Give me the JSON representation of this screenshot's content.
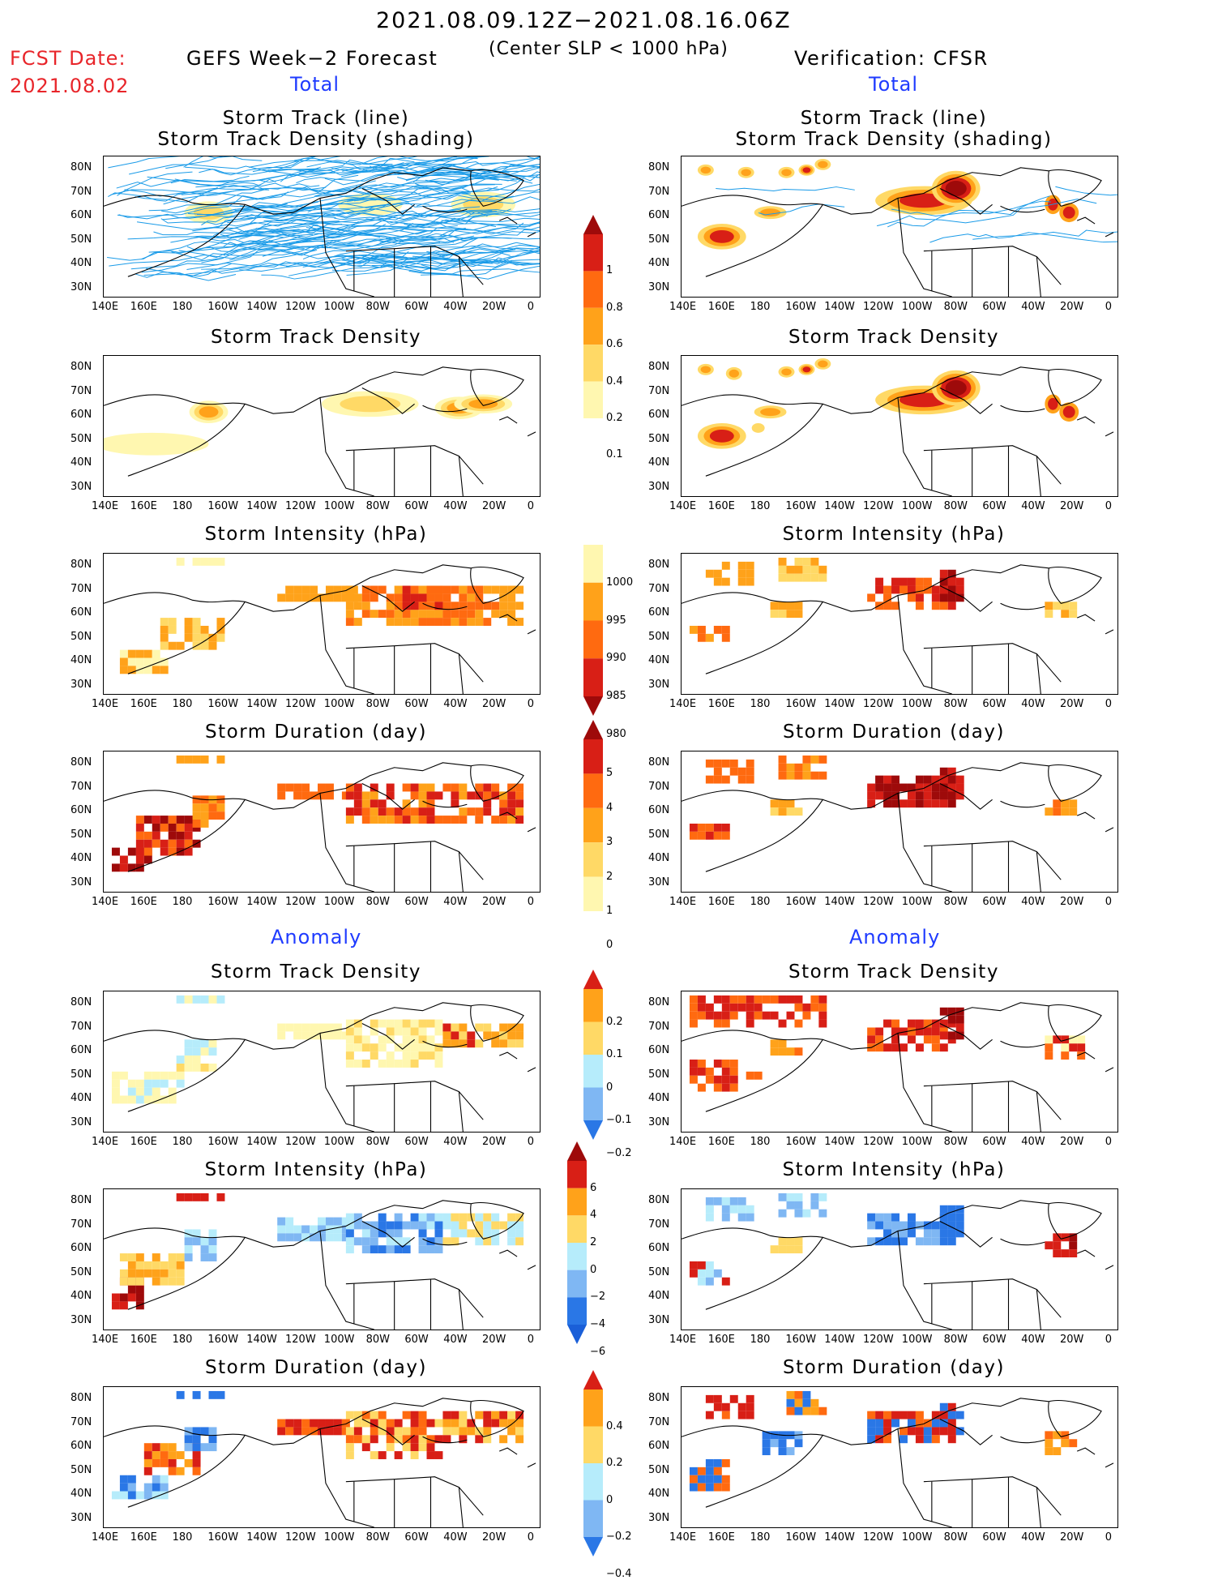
{
  "header": {
    "title": "2021.08.09.12Z−2021.08.16.06Z",
    "subtitle": "(Center SLP < 1000 hPa)",
    "fcst_label": "FCST Date:",
    "fcst_date": "2021.08.02",
    "left_model": "GEFS Week−2 Forecast",
    "right_model": "Verification: CFSR"
  },
  "sections": {
    "total": "Total",
    "anomaly": "Anomaly"
  },
  "panel_titles": {
    "track_line": "Storm Track (line)",
    "track_shading": "Storm Track Density (shading)",
    "density": "Storm Track Density",
    "intensity": "Storm Intensity (hPa)",
    "duration": "Storm Duration (day)"
  },
  "axes": {
    "lon_labels": [
      "140E",
      "160E",
      "180",
      "160W",
      "140W",
      "120W",
      "100W",
      "80W",
      "60W",
      "40W",
      "20W",
      "0"
    ],
    "lat_labels": [
      "80N",
      "70N",
      "60N",
      "50N",
      "40N",
      "30N"
    ]
  },
  "colorbars": {
    "total_density": [
      "1",
      "0.8",
      "0.6",
      "0.4",
      "0.2",
      "0.1"
    ],
    "total_intensity": [
      "1000",
      "995",
      "990",
      "985",
      "980"
    ],
    "total_duration": [
      "5",
      "4",
      "3",
      "2",
      "1",
      "0"
    ],
    "anom_density": [
      "0.2",
      "0.1",
      "0",
      "−0.1",
      "−0.2"
    ],
    "anom_intensity": [
      "6",
      "4",
      "2",
      "0",
      "−2",
      "−4",
      "−6"
    ],
    "anom_duration": [
      "0.4",
      "0.2",
      "0",
      "−0.2",
      "−0.4"
    ]
  },
  "colors": {
    "track_line": "#1a9be8",
    "pale_yellow": "#fff7b0",
    "yellow": "#ffd966",
    "orange": "#ffa21a",
    "dark_orange": "#ff6a10",
    "red": "#d81f16",
    "dark_red": "#9e0a0a",
    "light_blue": "#b6ecfb",
    "mid_blue": "#7fb7f3",
    "blue": "#2a77e6"
  }
}
